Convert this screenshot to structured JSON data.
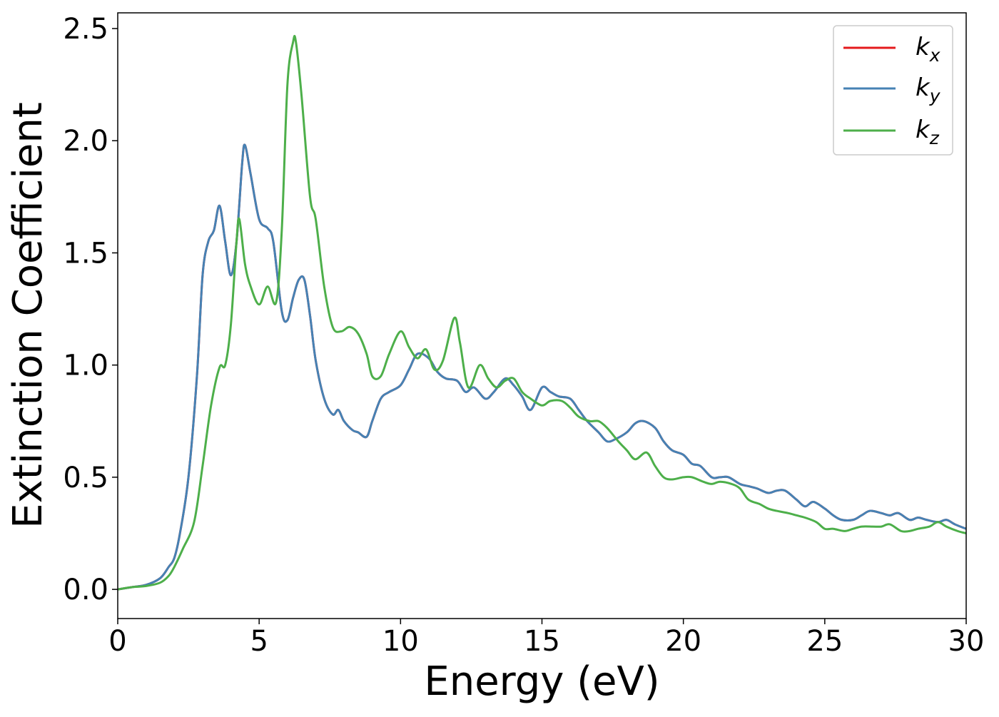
{
  "chart_data": {
    "type": "line",
    "title": "",
    "xlabel": "Energy (eV)",
    "ylabel": "Extinction Coefficient",
    "xlim": [
      0,
      30
    ],
    "ylim": [
      -0.13,
      2.57
    ],
    "xticks": [
      0,
      5,
      10,
      15,
      20,
      25,
      30
    ],
    "xtick_labels": [
      "0",
      "5",
      "10",
      "15",
      "20",
      "25",
      "30"
    ],
    "yticks": [
      0.0,
      0.5,
      1.0,
      1.5,
      2.0,
      2.5
    ],
    "ytick_labels": [
      "0.0",
      "0.5",
      "1.0",
      "1.5",
      "2.0",
      "2.5"
    ],
    "grid": false,
    "legend_position": "top-right",
    "series": [
      {
        "name": "k_x",
        "label_main": "k",
        "label_sub": "x",
        "color": "#e41a1c",
        "x": [
          0,
          0.5,
          1.0,
          1.5,
          1.8,
          2.0,
          2.2,
          2.5,
          2.8,
          3.0,
          3.2,
          3.4,
          3.6,
          3.8,
          4.0,
          4.2,
          4.4,
          4.5,
          4.7,
          5.0,
          5.3,
          5.5,
          5.8,
          6.0,
          6.2,
          6.4,
          6.6,
          6.8,
          7.0,
          7.3,
          7.6,
          7.8,
          8.0,
          8.3,
          8.5,
          8.8,
          9.0,
          9.3,
          9.6,
          10.0,
          10.3,
          10.6,
          11.0,
          11.3,
          11.6,
          12.0,
          12.3,
          12.6,
          13.0,
          13.3,
          13.7,
          14.0,
          14.3,
          14.6,
          15.0,
          15.3,
          15.6,
          16.0,
          16.3,
          16.6,
          17.0,
          17.3,
          17.6,
          18.0,
          18.3,
          18.6,
          19.0,
          19.3,
          19.6,
          20.0,
          20.3,
          20.6,
          21.0,
          21.3,
          21.6,
          22.0,
          22.3,
          22.6,
          23.0,
          23.3,
          23.6,
          24.0,
          24.3,
          24.6,
          25.0,
          25.3,
          25.6,
          26.0,
          26.3,
          26.6,
          27.0,
          27.3,
          27.6,
          28.0,
          28.3,
          28.6,
          29.0,
          29.3,
          29.6,
          30.0
        ],
        "y": [
          0.0,
          0.01,
          0.02,
          0.05,
          0.1,
          0.14,
          0.25,
          0.5,
          0.95,
          1.4,
          1.55,
          1.6,
          1.71,
          1.55,
          1.4,
          1.55,
          1.9,
          1.98,
          1.85,
          1.65,
          1.61,
          1.55,
          1.24,
          1.2,
          1.3,
          1.38,
          1.38,
          1.22,
          1.02,
          0.85,
          0.78,
          0.8,
          0.75,
          0.71,
          0.7,
          0.68,
          0.75,
          0.85,
          0.88,
          0.91,
          0.98,
          1.05,
          1.03,
          0.97,
          0.94,
          0.93,
          0.88,
          0.9,
          0.85,
          0.88,
          0.94,
          0.91,
          0.86,
          0.8,
          0.9,
          0.88,
          0.86,
          0.85,
          0.8,
          0.75,
          0.7,
          0.66,
          0.67,
          0.7,
          0.74,
          0.75,
          0.72,
          0.66,
          0.62,
          0.6,
          0.56,
          0.55,
          0.5,
          0.5,
          0.5,
          0.47,
          0.46,
          0.45,
          0.43,
          0.44,
          0.44,
          0.4,
          0.37,
          0.39,
          0.36,
          0.33,
          0.31,
          0.31,
          0.33,
          0.35,
          0.34,
          0.33,
          0.34,
          0.31,
          0.32,
          0.31,
          0.3,
          0.31,
          0.29,
          0.27
        ]
      },
      {
        "name": "k_y",
        "label_main": "k",
        "label_sub": "y",
        "color": "#4682b4",
        "x": [
          0,
          0.5,
          1.0,
          1.5,
          1.8,
          2.0,
          2.2,
          2.5,
          2.8,
          3.0,
          3.2,
          3.4,
          3.6,
          3.8,
          4.0,
          4.2,
          4.4,
          4.5,
          4.7,
          5.0,
          5.3,
          5.5,
          5.8,
          6.0,
          6.2,
          6.4,
          6.6,
          6.8,
          7.0,
          7.3,
          7.6,
          7.8,
          8.0,
          8.3,
          8.5,
          8.8,
          9.0,
          9.3,
          9.6,
          10.0,
          10.3,
          10.6,
          11.0,
          11.3,
          11.6,
          12.0,
          12.3,
          12.6,
          13.0,
          13.3,
          13.7,
          14.0,
          14.3,
          14.6,
          15.0,
          15.3,
          15.6,
          16.0,
          16.3,
          16.6,
          17.0,
          17.3,
          17.6,
          18.0,
          18.3,
          18.6,
          19.0,
          19.3,
          19.6,
          20.0,
          20.3,
          20.6,
          21.0,
          21.3,
          21.6,
          22.0,
          22.3,
          22.6,
          23.0,
          23.3,
          23.6,
          24.0,
          24.3,
          24.6,
          25.0,
          25.3,
          25.6,
          26.0,
          26.3,
          26.6,
          27.0,
          27.3,
          27.6,
          28.0,
          28.3,
          28.6,
          29.0,
          29.3,
          29.6,
          30.0
        ],
        "y": [
          0.0,
          0.01,
          0.02,
          0.05,
          0.1,
          0.14,
          0.25,
          0.5,
          0.95,
          1.4,
          1.55,
          1.6,
          1.71,
          1.55,
          1.4,
          1.55,
          1.9,
          1.98,
          1.85,
          1.65,
          1.61,
          1.55,
          1.24,
          1.2,
          1.3,
          1.38,
          1.38,
          1.22,
          1.02,
          0.85,
          0.78,
          0.8,
          0.75,
          0.71,
          0.7,
          0.68,
          0.75,
          0.85,
          0.88,
          0.91,
          0.98,
          1.05,
          1.03,
          0.97,
          0.94,
          0.93,
          0.88,
          0.9,
          0.85,
          0.88,
          0.94,
          0.91,
          0.86,
          0.8,
          0.9,
          0.88,
          0.86,
          0.85,
          0.8,
          0.75,
          0.7,
          0.66,
          0.67,
          0.7,
          0.74,
          0.75,
          0.72,
          0.66,
          0.62,
          0.6,
          0.56,
          0.55,
          0.5,
          0.5,
          0.5,
          0.47,
          0.46,
          0.45,
          0.43,
          0.44,
          0.44,
          0.4,
          0.37,
          0.39,
          0.36,
          0.33,
          0.31,
          0.31,
          0.33,
          0.35,
          0.34,
          0.33,
          0.34,
          0.31,
          0.32,
          0.31,
          0.3,
          0.31,
          0.29,
          0.27
        ]
      },
      {
        "name": "k_z",
        "label_main": "k",
        "label_sub": "z",
        "color": "#4daf4a",
        "x": [
          0,
          0.5,
          1.0,
          1.5,
          1.8,
          2.0,
          2.3,
          2.7,
          3.0,
          3.3,
          3.6,
          3.8,
          4.0,
          4.2,
          4.3,
          4.5,
          4.7,
          5.0,
          5.3,
          5.6,
          5.8,
          6.0,
          6.2,
          6.3,
          6.5,
          6.8,
          7.0,
          7.3,
          7.6,
          7.9,
          8.2,
          8.5,
          8.8,
          9.0,
          9.3,
          9.6,
          10.0,
          10.3,
          10.6,
          10.9,
          11.2,
          11.5,
          11.9,
          12.1,
          12.4,
          12.8,
          13.1,
          13.4,
          13.7,
          14.0,
          14.3,
          14.6,
          15.0,
          15.3,
          15.7,
          16.0,
          16.3,
          16.7,
          17.0,
          17.3,
          17.7,
          18.0,
          18.3,
          18.7,
          19.0,
          19.3,
          19.6,
          20.0,
          20.3,
          20.7,
          21.0,
          21.3,
          21.7,
          22.0,
          22.3,
          22.7,
          23.0,
          23.3,
          23.7,
          24.0,
          24.3,
          24.7,
          25.0,
          25.3,
          25.7,
          26.0,
          26.3,
          26.7,
          27.0,
          27.3,
          27.7,
          28.0,
          28.3,
          28.7,
          29.0,
          29.3,
          29.7,
          30.0
        ],
        "y": [
          0.0,
          0.01,
          0.015,
          0.03,
          0.06,
          0.1,
          0.18,
          0.3,
          0.55,
          0.82,
          0.99,
          1.0,
          1.18,
          1.55,
          1.65,
          1.45,
          1.35,
          1.27,
          1.35,
          1.28,
          1.6,
          2.25,
          2.44,
          2.44,
          2.2,
          1.75,
          1.65,
          1.35,
          1.17,
          1.15,
          1.17,
          1.14,
          1.05,
          0.95,
          0.95,
          1.05,
          1.15,
          1.08,
          1.03,
          1.07,
          0.98,
          1.02,
          1.21,
          1.1,
          0.9,
          1.0,
          0.94,
          0.9,
          0.93,
          0.94,
          0.88,
          0.85,
          0.82,
          0.84,
          0.84,
          0.81,
          0.77,
          0.75,
          0.75,
          0.72,
          0.66,
          0.62,
          0.58,
          0.61,
          0.55,
          0.5,
          0.49,
          0.5,
          0.5,
          0.48,
          0.47,
          0.48,
          0.47,
          0.45,
          0.4,
          0.38,
          0.36,
          0.35,
          0.34,
          0.33,
          0.32,
          0.3,
          0.27,
          0.27,
          0.26,
          0.27,
          0.28,
          0.28,
          0.28,
          0.29,
          0.26,
          0.26,
          0.27,
          0.28,
          0.3,
          0.28,
          0.26,
          0.25
        ]
      }
    ]
  }
}
